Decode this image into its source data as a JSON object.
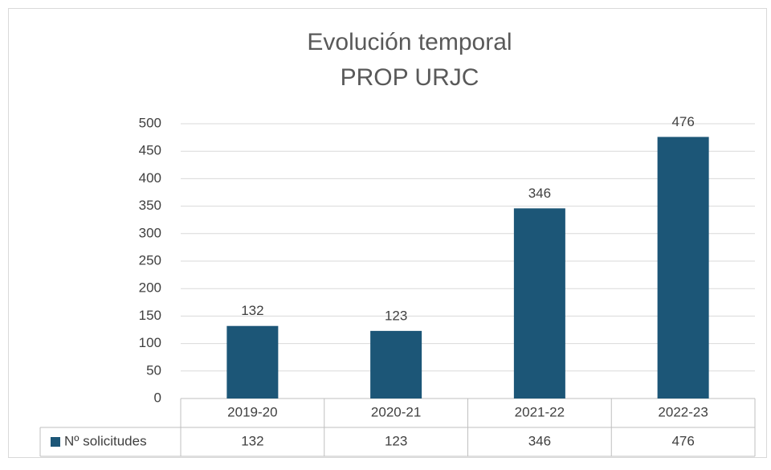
{
  "chart_data": {
    "type": "bar",
    "title": [
      "Evolución temporal",
      "PROP URJC"
    ],
    "categories": [
      "2019-20",
      "2020-21",
      "2021-22",
      "2022-23"
    ],
    "series": [
      {
        "name": "Nº solicitudes",
        "color": "#1c5677",
        "values": [
          132,
          123,
          346,
          476
        ]
      }
    ],
    "ylim": [
      0,
      500
    ],
    "yticks": [
      0,
      50,
      100,
      150,
      200,
      250,
      300,
      350,
      400,
      450,
      500
    ],
    "grid": true,
    "data_labels": true,
    "data_table": true
  }
}
